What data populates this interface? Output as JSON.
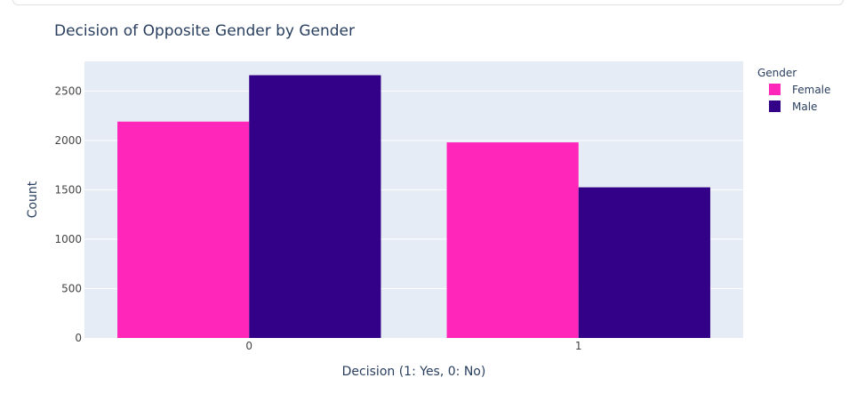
{
  "chart_data": {
    "type": "bar",
    "barmode": "group",
    "title": "Decision of Opposite Gender by Gender",
    "xlabel": "Decision (1: Yes, 0: No)",
    "ylabel": "Count",
    "categories": [
      "0",
      "1"
    ],
    "series": [
      {
        "name": "Female",
        "color": "#ff26b9",
        "values": [
          2190,
          1980
        ]
      },
      {
        "name": "Male",
        "color": "#330088",
        "values": [
          2660,
          1525
        ]
      }
    ],
    "yticks": [
      0,
      500,
      1000,
      1500,
      2000,
      2500
    ],
    "ylim": [
      0,
      2800
    ],
    "grid": true,
    "legend": {
      "title": "Gender",
      "position": "top-right"
    },
    "colors": {
      "plot_background": "#e5ecf6",
      "gridline": "#ffffff",
      "text": "#2a3f5f",
      "axis_text": "#444444"
    }
  }
}
